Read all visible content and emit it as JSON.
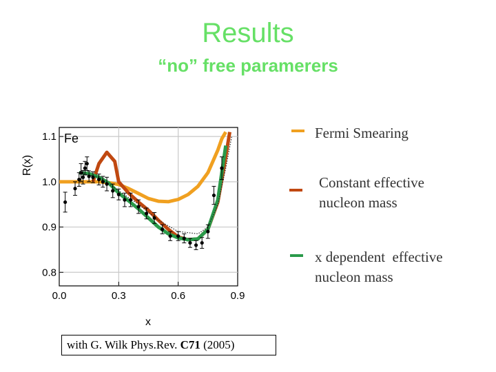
{
  "slide": {
    "title": "Results",
    "subtitle": "“no” free paramerers",
    "citation_prefix": "with G. Wilk Phys.Rev. ",
    "citation_volume": "C71",
    "citation_suffix": " (2005)"
  },
  "legend": [
    {
      "label_lines": [
        "Fermi Smearing"
      ],
      "color": "#f0a020"
    },
    {
      "label_lines": [
        "Constant effective",
        "nucleon mass"
      ],
      "color": "#c04810"
    },
    {
      "label_lines": [
        "x dependent  effective",
        "nucleon mass"
      ],
      "color": "#2a9a4a"
    }
  ],
  "chart_data": {
    "type": "line",
    "title": "Fe",
    "xlabel": "x",
    "ylabel": "R(x)",
    "xlim": [
      0.0,
      0.9
    ],
    "ylim": [
      0.77,
      1.12
    ],
    "xticks": [
      0.0,
      0.3,
      0.6,
      0.9
    ],
    "xtick_labels": [
      "0.0",
      "0.3",
      "0.6",
      "0.9"
    ],
    "yticks": [
      0.8,
      0.9,
      1.0,
      1.1
    ],
    "ytick_labels": [
      "0.8",
      "0.9",
      "1.0",
      "1.1"
    ],
    "grid": true,
    "series": [
      {
        "name": "Fermi Smearing",
        "color": "#f0a020",
        "x": [
          0.0,
          0.1,
          0.15,
          0.2,
          0.25,
          0.3,
          0.35,
          0.4,
          0.45,
          0.5,
          0.55,
          0.6,
          0.65,
          0.7,
          0.75,
          0.8,
          0.82,
          0.84
        ],
        "y": [
          1.0,
          1.0,
          1.0,
          1.0,
          0.998,
          0.994,
          0.985,
          0.974,
          0.963,
          0.957,
          0.956,
          0.961,
          0.972,
          0.99,
          1.02,
          1.07,
          1.095,
          1.11
        ]
      },
      {
        "name": "Constant effective nucleon mass",
        "color": "#c04810",
        "x": [
          0.17,
          0.2,
          0.24,
          0.28,
          0.3,
          0.35,
          0.4,
          0.45,
          0.5,
          0.55,
          0.6,
          0.65,
          0.7,
          0.75,
          0.8,
          0.83,
          0.86
        ],
        "y": [
          1.0,
          1.04,
          1.065,
          1.045,
          1.0,
          0.975,
          0.955,
          0.937,
          0.915,
          0.895,
          0.878,
          0.872,
          0.874,
          0.895,
          0.955,
          1.03,
          1.11
        ]
      },
      {
        "name": "x dependent  effective nucleon mass",
        "color": "#2a9a4a",
        "x": [
          0.1,
          0.15,
          0.2,
          0.25,
          0.3,
          0.35,
          0.4,
          0.45,
          0.5,
          0.55,
          0.6,
          0.65,
          0.7,
          0.75,
          0.8,
          0.84
        ],
        "y": [
          1.02,
          1.018,
          1.01,
          0.997,
          0.975,
          0.958,
          0.94,
          0.92,
          0.9,
          0.885,
          0.876,
          0.872,
          0.874,
          0.895,
          0.96,
          1.08
        ]
      },
      {
        "name": "",
        "color": "#222222",
        "style": "dotted",
        "x": [
          0.1,
          0.2,
          0.3,
          0.4,
          0.5,
          0.6,
          0.7,
          0.75,
          0.8,
          0.84,
          0.87
        ],
        "y": [
          1.02,
          1.01,
          0.98,
          0.95,
          0.915,
          0.89,
          0.885,
          0.9,
          0.95,
          1.03,
          1.1
        ]
      }
    ],
    "points": {
      "x": [
        0.03,
        0.08,
        0.1,
        0.11,
        0.12,
        0.13,
        0.14,
        0.15,
        0.17,
        0.2,
        0.22,
        0.24,
        0.27,
        0.3,
        0.33,
        0.36,
        0.4,
        0.44,
        0.48,
        0.52,
        0.56,
        0.6,
        0.63,
        0.66,
        0.69,
        0.72,
        0.75,
        0.78,
        0.82
      ],
      "y": [
        0.955,
        0.985,
        1.005,
        1.02,
        1.01,
        1.03,
        1.04,
        1.012,
        1.01,
        1.005,
        1.0,
        0.995,
        0.98,
        0.972,
        0.96,
        0.96,
        0.945,
        0.93,
        0.92,
        0.895,
        0.88,
        0.88,
        0.875,
        0.865,
        0.86,
        0.865,
        0.89,
        0.97,
        1.03
      ],
      "err": [
        0.022,
        0.015,
        0.015,
        0.02,
        0.015,
        0.015,
        0.015,
        0.012,
        0.012,
        0.012,
        0.012,
        0.015,
        0.015,
        0.012,
        0.015,
        0.015,
        0.015,
        0.012,
        0.012,
        0.01,
        0.01,
        0.01,
        0.01,
        0.01,
        0.01,
        0.012,
        0.015,
        0.02,
        0.025
      ]
    }
  }
}
